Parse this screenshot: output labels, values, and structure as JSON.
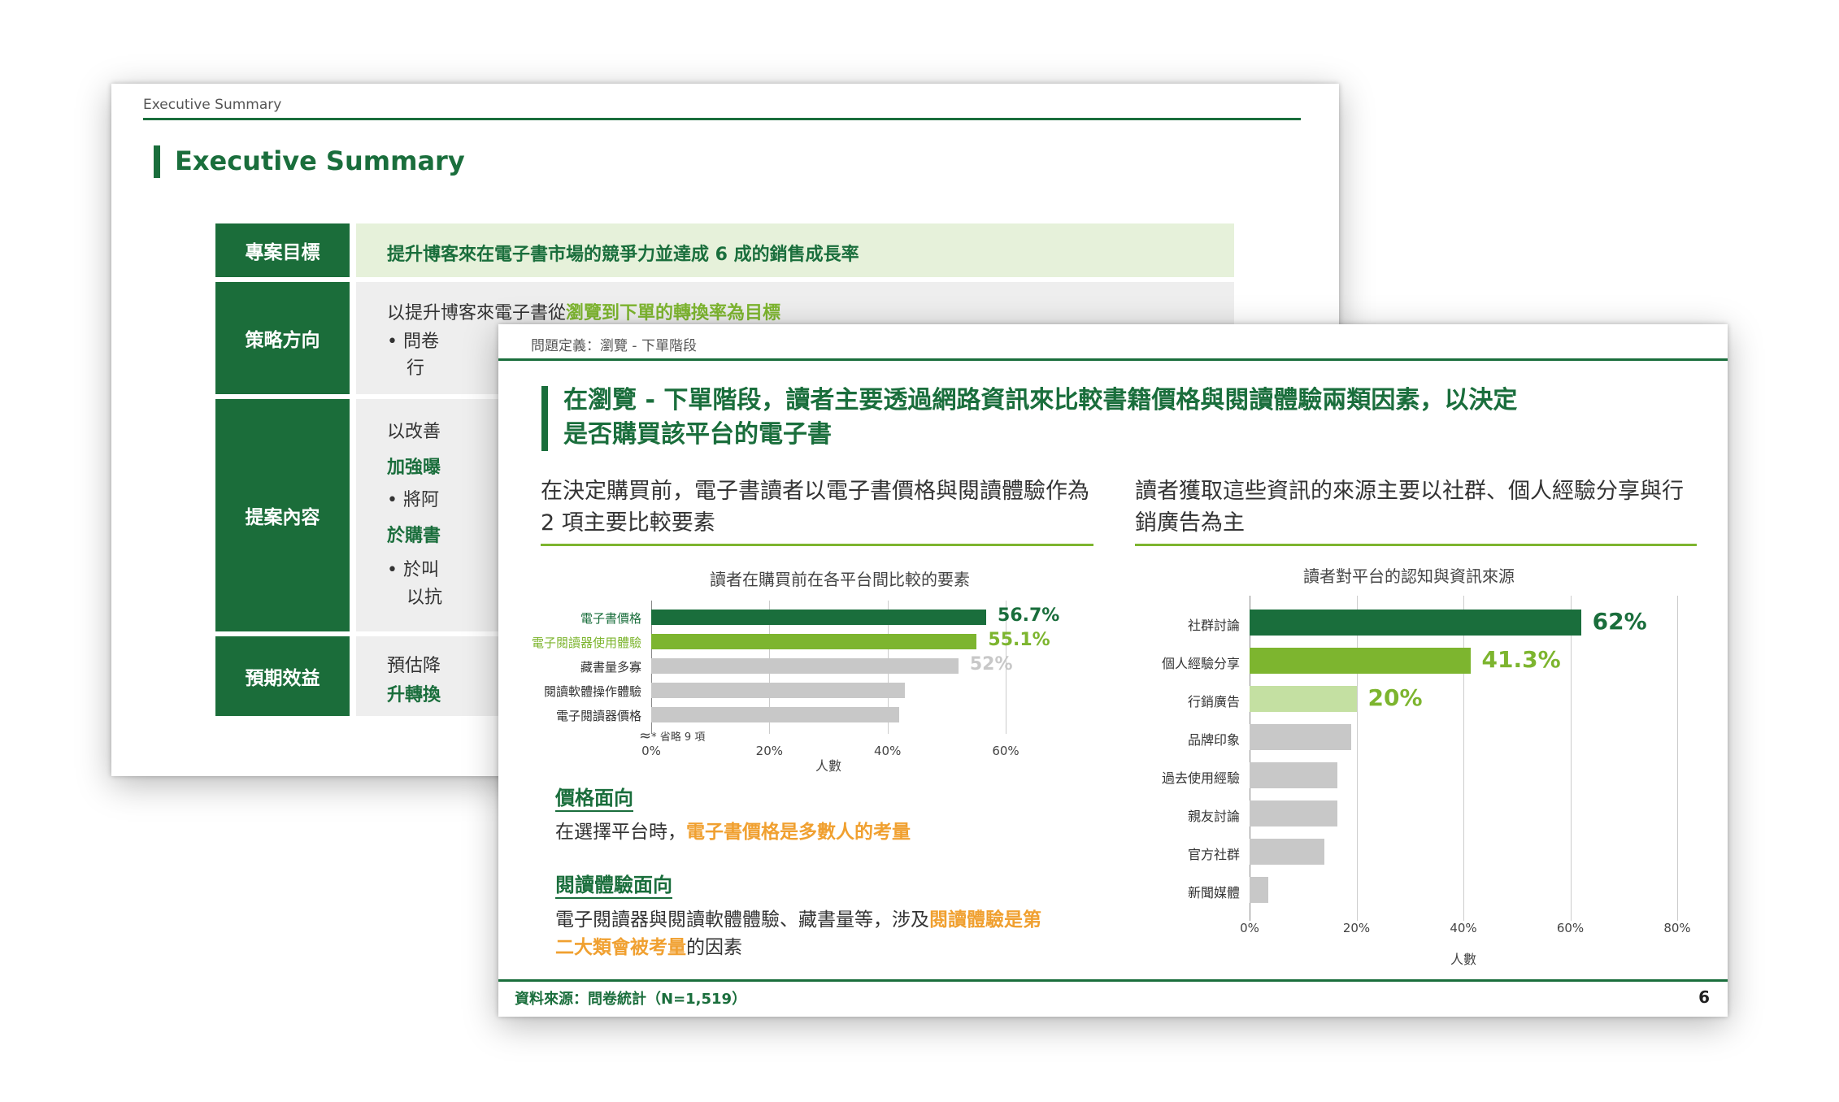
{
  "back_slide": {
    "breadcrumb": "Executive Summary",
    "title": "Executive Summary",
    "rows": [
      {
        "label": "專案目標",
        "text": "提升博客來在電子書市場的競爭力並達成 6 成的銷售成長率"
      },
      {
        "label": "策略方向",
        "line1_plain": "以提升博客來電子書從",
        "line1_highlight": "瀏覽到下單的轉換率為目標",
        "line2": "•  問卷",
        "line3": "行"
      },
      {
        "label": "提案內容",
        "line1": "以改善",
        "line2": "加強曝",
        "line3": "•  將阿",
        "line4": "於購書",
        "line5": "•  於叫",
        "line6": "以抗"
      },
      {
        "label": "預期效益",
        "line1": "預估降",
        "line2": "升轉換"
      }
    ]
  },
  "front_slide": {
    "breadcrumb": "問題定義：瀏覽 - 下單階段",
    "title_line1": "在瀏覽 - 下單階段，讀者主要透過網路資訊來比較書籍價格與閱讀體驗兩類因素，以決定",
    "title_line2": "是否購買該平台的電子書",
    "left_sub_line1": "在決定購買前，電子書讀者以電子書價格與閱讀體驗作為",
    "left_sub_line2": "2 項主要比較要素",
    "right_sub_line1": "讀者獲取這些資訊的來源主要以社群、個人經驗分享與行",
    "right_sub_line2": "銷廣告為主",
    "omit_note": "* 省略 9 項",
    "price_heading": "價格面向",
    "price_text_plain": "在選擇平台時，",
    "price_text_highlight": "電子書價格是多數人的考量",
    "exp_heading": "閱讀體驗面向",
    "exp_text_plain1": "電子閱讀器與閱讀軟體體驗、藏書量等，涉及",
    "exp_text_highlight1": "閱讀體驗是第",
    "exp_text_highlight2": "二大類會被考量",
    "exp_text_plain2": "的因素",
    "source": "資料來源：問卷統計（N=1,519）",
    "page_number": "6",
    "colors": {
      "dark_green": "#1a6e3c",
      "light_green": "#7db52f",
      "pale_green": "#c4e0a2",
      "gray": "#c8c8c8",
      "orange": "#f0a030"
    }
  },
  "chart_data": [
    {
      "type": "bar",
      "orientation": "horizontal",
      "title": "讀者在購買前在各平台間比較的要素",
      "xlabel": "人數",
      "xlim": [
        0,
        60
      ],
      "ticks": [
        "0%",
        "20%",
        "40%",
        "60%"
      ],
      "categories": [
        "電子書價格",
        "電子閱讀器使用體驗",
        "藏書量多寡",
        "閱讀軟體操作體驗",
        "電子閱讀器價格"
      ],
      "values": [
        56.7,
        55.1,
        52,
        43,
        42
      ],
      "labels": [
        "56.7%",
        "55.1%",
        "52%",
        "",
        ""
      ]
    },
    {
      "type": "bar",
      "orientation": "horizontal",
      "title": "讀者對平台的認知與資訊來源",
      "xlabel": "人數",
      "xlim": [
        0,
        80
      ],
      "ticks": [
        "0%",
        "20%",
        "40%",
        "60%",
        "80%"
      ],
      "categories": [
        "社群討論",
        "個人經驗分享",
        "行銷廣告",
        "品牌印象",
        "過去使用經驗",
        "親友討論",
        "官方社群",
        "新聞媒體"
      ],
      "values": [
        62,
        41.3,
        20,
        19,
        16.5,
        16.5,
        14,
        3.5
      ],
      "labels": [
        "62%",
        "41.3%",
        "20%",
        "",
        "",
        "",
        "",
        ""
      ]
    }
  ]
}
